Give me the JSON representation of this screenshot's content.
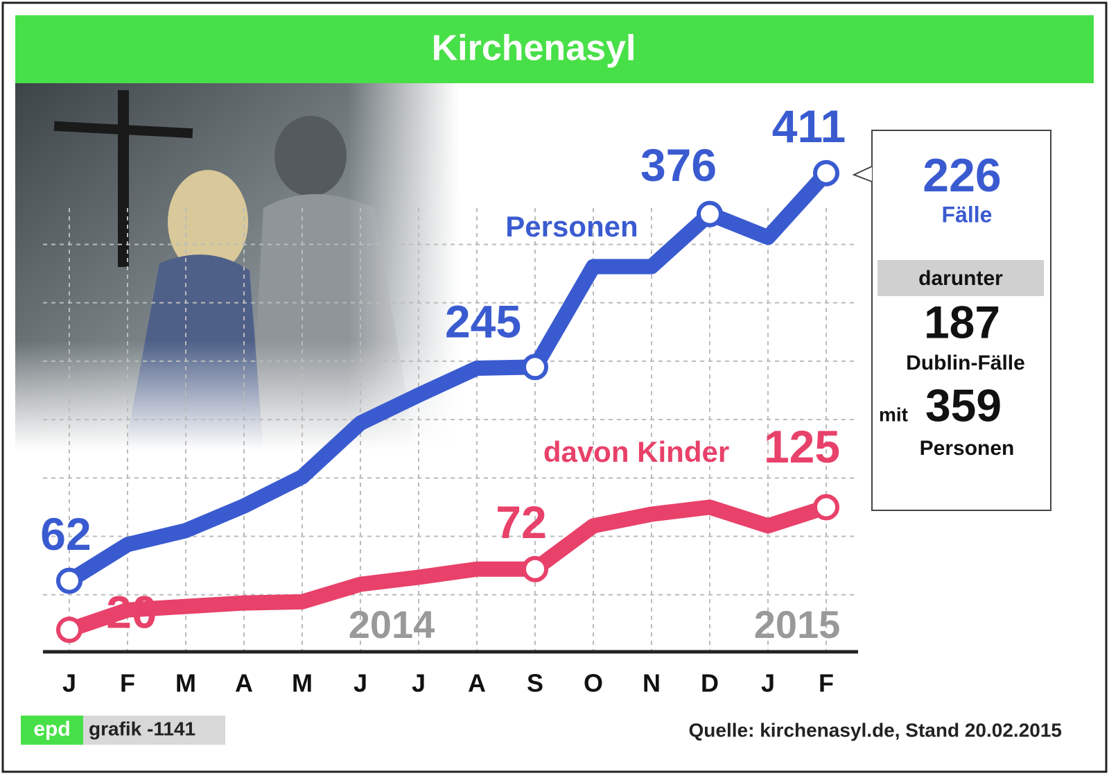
{
  "header": {
    "title": "Kirchenasyl"
  },
  "chart_data": {
    "type": "line",
    "categories": [
      "J",
      "F",
      "M",
      "A",
      "M",
      "J",
      "J",
      "A",
      "S",
      "O",
      "N",
      "D",
      "J",
      "F"
    ],
    "annotations": [
      "2014",
      "2015"
    ],
    "series": [
      {
        "name": "Personen",
        "color": "#3a5bd0",
        "values": [
          62,
          93,
          105,
          126,
          151,
          197,
          221,
          244,
          245,
          331,
          331,
          376,
          356,
          411
        ],
        "value_labels": [
          "62",
          null,
          null,
          null,
          null,
          null,
          null,
          null,
          "245",
          null,
          null,
          "376",
          null,
          "411"
        ]
      },
      {
        "name": "davon Kinder",
        "color": "#e8416a",
        "values": [
          20,
          37,
          40,
          43,
          44,
          59,
          65,
          72,
          72,
          109,
          119,
          125,
          109,
          125
        ],
        "value_labels": [
          "20",
          null,
          null,
          null,
          null,
          null,
          null,
          null,
          "72",
          null,
          null,
          null,
          null,
          "125"
        ]
      }
    ],
    "ylim": [
      0,
      450
    ],
    "yticks": [
      50,
      100,
      150,
      200,
      250,
      300,
      350
    ],
    "grid": true
  },
  "info_box": {
    "cases": "226",
    "cases_label": "Fälle",
    "band": "darunter",
    "dublin": "187",
    "dublin_label": "Dublin-Fälle",
    "with": "mit",
    "persons": "359",
    "persons_label": "Personen"
  },
  "footer": {
    "logo": "epd",
    "code": "grafik -1141",
    "source": "Quelle: kirchenasyl.de, Stand 20.02.2015"
  }
}
